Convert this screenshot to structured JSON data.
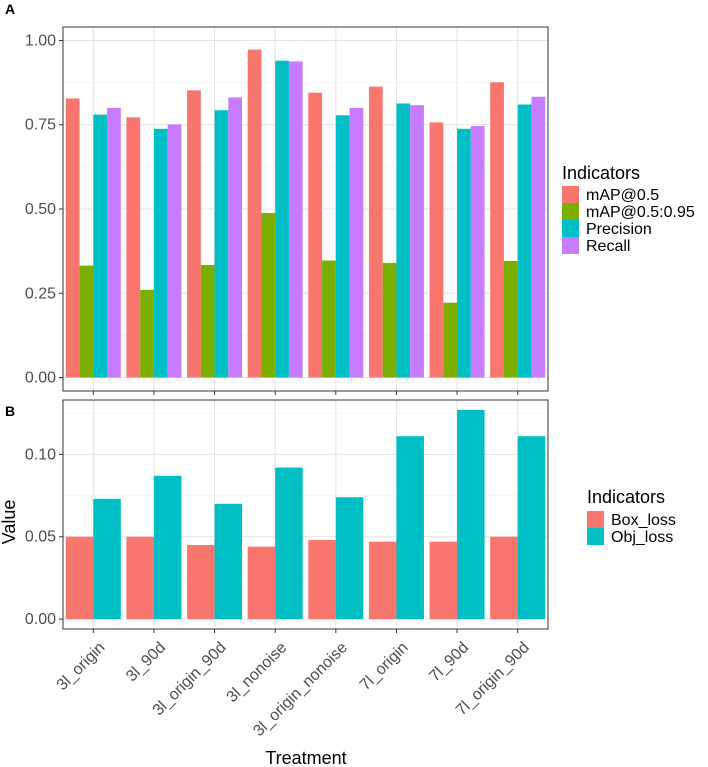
{
  "chart_data": [
    {
      "panel": "A",
      "type": "bar",
      "categories": [
        "3l_origin",
        "3l_90d",
        "3l_origin_90d",
        "3l_nonoise",
        "3l_origin_nonoise",
        "7l_origin",
        "7l_90d",
        "7l_origin_90d"
      ],
      "series": [
        {
          "name": "mAP@0.5",
          "color": "#F8766D",
          "values": [
            0.828,
            0.772,
            0.852,
            0.973,
            0.845,
            0.863,
            0.757,
            0.876
          ]
        },
        {
          "name": "mAP@0.5:0.95",
          "color": "#7CAE00",
          "values": [
            0.332,
            0.26,
            0.334,
            0.488,
            0.347,
            0.34,
            0.222,
            0.346
          ]
        },
        {
          "name": "Precision",
          "color": "#00BFC4",
          "values": [
            0.78,
            0.738,
            0.793,
            0.94,
            0.778,
            0.813,
            0.738,
            0.81
          ]
        },
        {
          "name": "Recall",
          "color": "#C77CFF",
          "values": [
            0.8,
            0.751,
            0.831,
            0.938,
            0.8,
            0.808,
            0.746,
            0.833
          ]
        }
      ],
      "yticks": [
        "0.00",
        "0.25",
        "0.50",
        "0.75",
        "1.00"
      ],
      "ylim": [
        -0.04,
        1.04
      ],
      "legend_title": "Indicators",
      "legend_position": "right"
    },
    {
      "panel": "B",
      "type": "bar",
      "categories": [
        "3l_origin",
        "3l_90d",
        "3l_origin_90d",
        "3l_nonoise",
        "3l_origin_nonoise",
        "7l_origin",
        "7l_90d",
        "7l_origin_90d"
      ],
      "series": [
        {
          "name": "Box_loss",
          "color": "#F8766D",
          "values": [
            0.05,
            0.05,
            0.045,
            0.044,
            0.048,
            0.047,
            0.047,
            0.05
          ]
        },
        {
          "name": "Obj_loss",
          "color": "#00BFC4",
          "values": [
            0.073,
            0.087,
            0.07,
            0.092,
            0.074,
            0.111,
            0.127,
            0.111
          ]
        }
      ],
      "yticks": [
        "0.00",
        "0.05",
        "0.10"
      ],
      "ylim": [
        -0.006,
        0.133
      ],
      "xlabel": "Treatment",
      "ylabel": "Value",
      "legend_title": "Indicators",
      "legend_position": "right"
    }
  ]
}
